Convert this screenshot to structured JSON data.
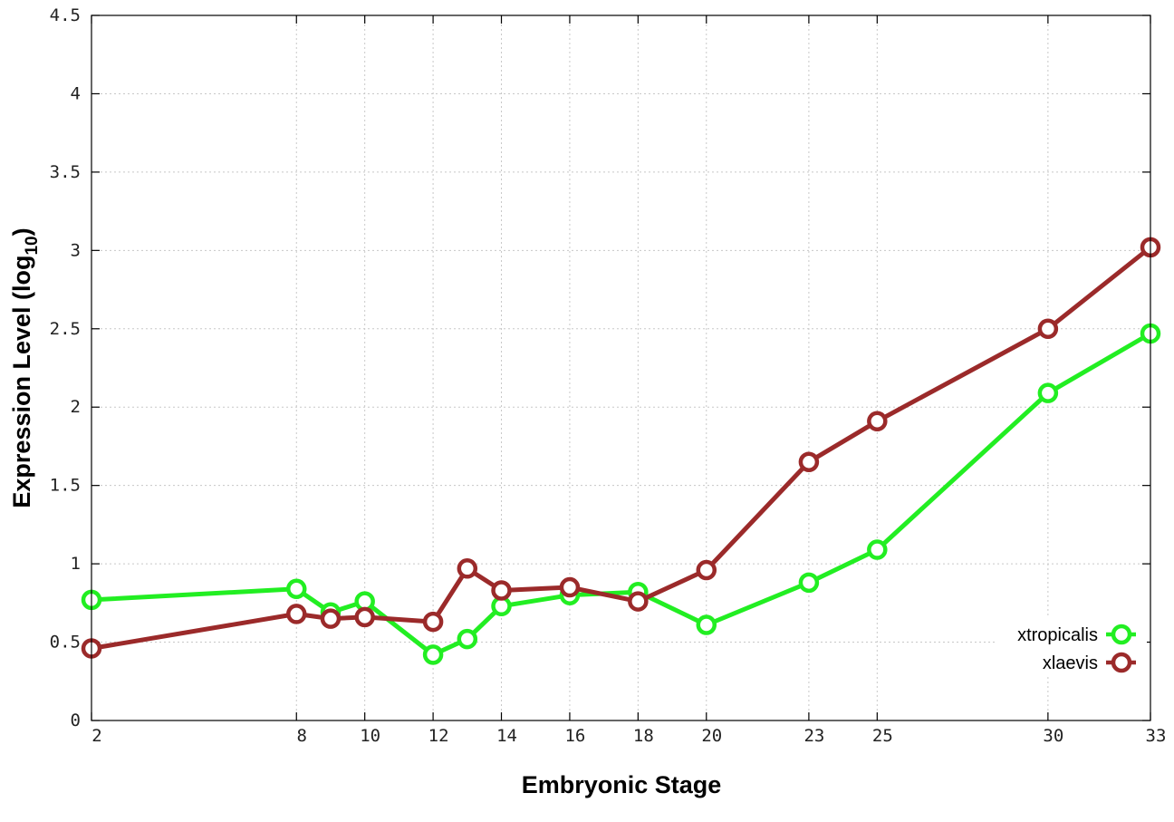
{
  "chart_data": {
    "type": "line",
    "xlabel": "Embryonic Stage",
    "ylabel": "Expression Level (log",
    "ylabel_sub": "10",
    "ylabel_suffix": ")",
    "xlim": [
      2,
      33
    ],
    "ylim": [
      0,
      4.5
    ],
    "x_ticks": [
      2,
      8,
      10,
      12,
      14,
      16,
      18,
      20,
      23,
      25,
      30,
      33
    ],
    "x_tick_labels": [
      "2",
      "8",
      "10",
      "12",
      "14",
      "16",
      "18",
      "20",
      "23",
      "25",
      "30",
      "33"
    ],
    "y_ticks": [
      0,
      0.5,
      1,
      1.5,
      2,
      2.5,
      3,
      3.5,
      4,
      4.5
    ],
    "y_tick_labels": [
      "0",
      "0.5",
      "1",
      "1.5",
      "2",
      "2.5",
      "3",
      "3.5",
      "4",
      "4.5"
    ],
    "grid": true,
    "legend_position": "bottom-right",
    "series": [
      {
        "name": "xtropicalis",
        "color": "#22ee22",
        "x": [
          2,
          8,
          9,
          10,
          12,
          13,
          14,
          16,
          18,
          20,
          23,
          25,
          30,
          33
        ],
        "y": [
          0.77,
          0.84,
          0.69,
          0.76,
          0.42,
          0.52,
          0.73,
          0.8,
          0.82,
          0.61,
          0.88,
          1.09,
          2.09,
          2.47
        ]
      },
      {
        "name": "xlaevis",
        "color": "#9b2a2a",
        "x": [
          2,
          8,
          9,
          10,
          12,
          13,
          14,
          16,
          18,
          20,
          23,
          25,
          30,
          33
        ],
        "y": [
          0.46,
          0.68,
          0.65,
          0.66,
          0.63,
          0.97,
          0.83,
          0.85,
          0.76,
          0.96,
          1.65,
          1.91,
          2.5,
          3.02
        ]
      }
    ]
  }
}
